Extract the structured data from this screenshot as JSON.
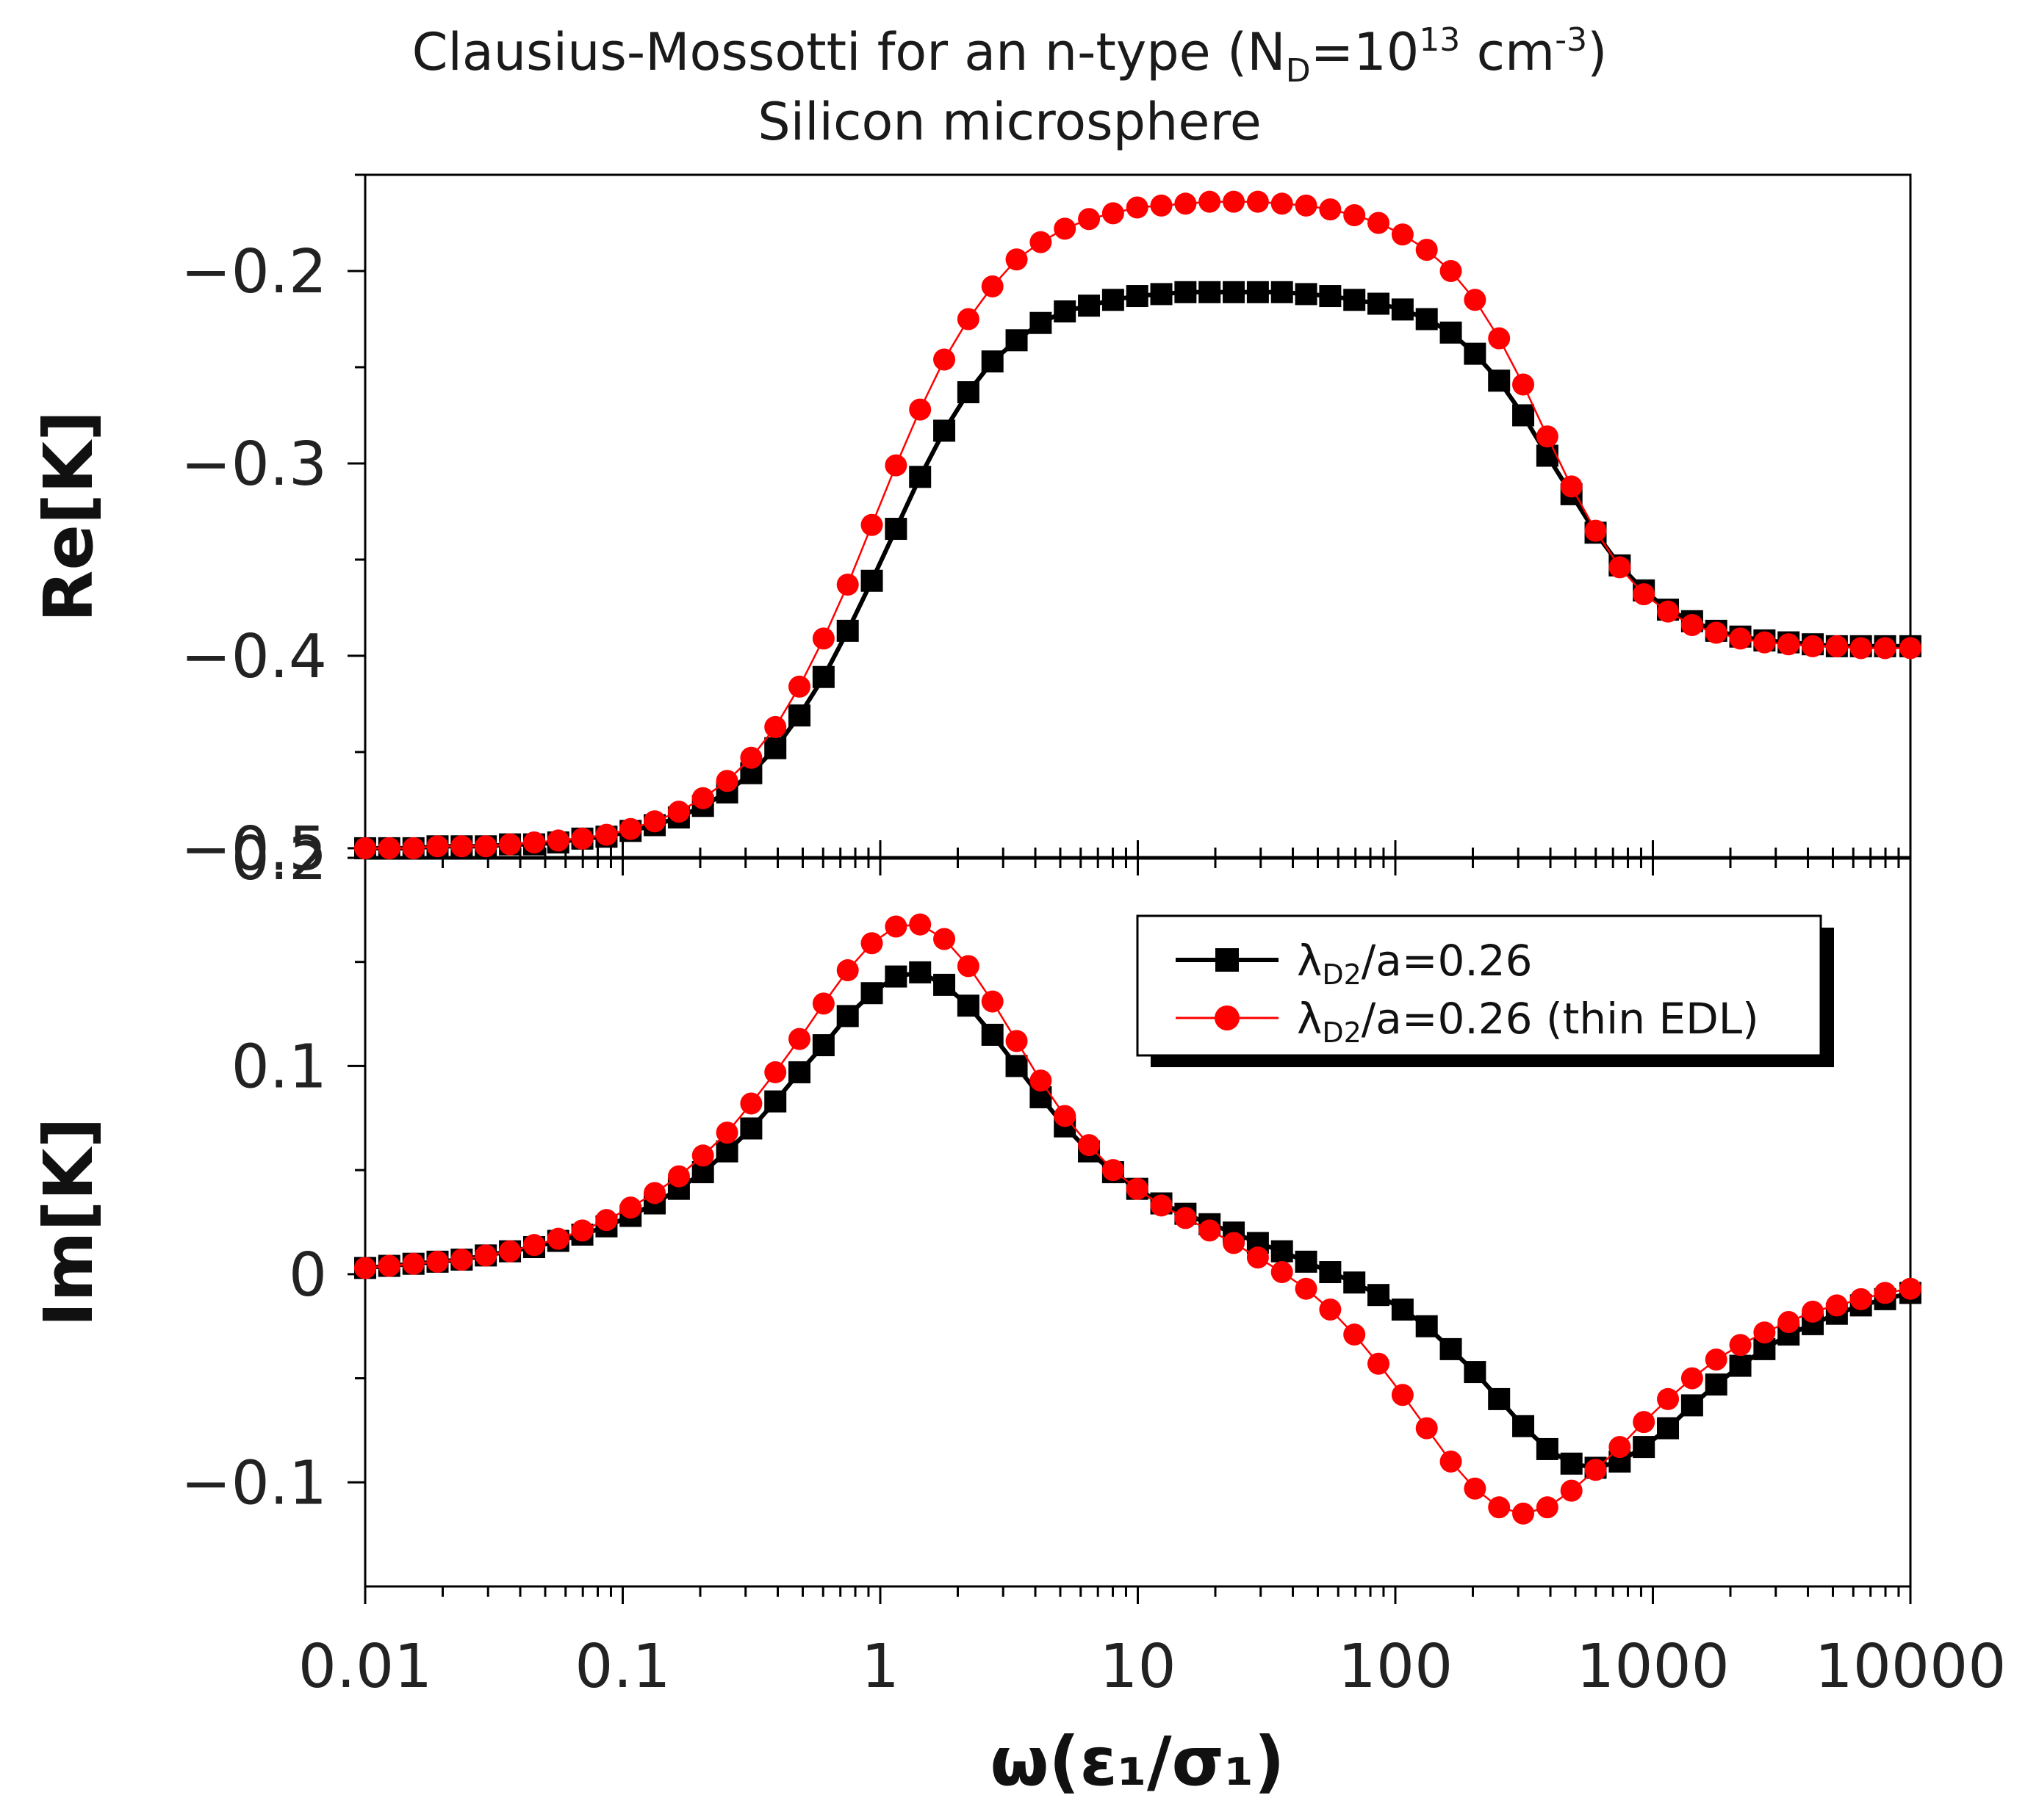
{
  "chart_data": {
    "type": "line",
    "title_line1": "Clausius-Mossotti for an n-type (N",
    "title_sub": "D",
    "title_mid": "=10",
    "title_sup": "13",
    "title_after": " cm",
    "title_sup2": "-3",
    "title_end": ")",
    "title_line2": "Silicon microsphere",
    "xlabel": "ω(ε₁/σ₁)",
    "xscale": "log",
    "xlim": [
      0.01,
      10000
    ],
    "x_ticks": [
      0.01,
      0.1,
      1,
      10,
      100,
      1000,
      10000
    ],
    "x_tick_labels": [
      "0.01",
      "0.1",
      "1",
      "10",
      "100",
      "1000",
      "10000"
    ],
    "x": [
      0.01,
      0.0124,
      0.0154,
      0.0191,
      0.0237,
      0.0294,
      0.0365,
      0.0453,
      0.0562,
      0.0697,
      0.0865,
      0.1073,
      0.1331,
      0.1652,
      0.2049,
      0.2543,
      0.3155,
      0.3914,
      0.4856,
      0.6025,
      0.7476,
      0.9275,
      1.1508,
      1.4278,
      1.7716,
      2.198,
      2.7271,
      3.3836,
      4.1981,
      5.2087,
      6.4626,
      8.0183,
      9.9485,
      12.3433,
      15.3146,
      19.0012,
      23.5752,
      29.2503,
      36.2915,
      45.0276,
      55.8667,
      69.3149,
      86.0005,
      106.7029,
      132.3888,
      164.2579,
      203.7985,
      252.8571,
      313.7254,
      389.2459,
      482.9458,
      599.2007,
      743.4407,
      922.4016,
      1144.4424,
      1419.9326,
      1761.7383,
      2185.8246,
      2712.0001,
      3364.9315,
      4174.8571,
      5179.7451,
      6426.5678,
      7973.4882,
      10000
    ],
    "panels": [
      {
        "name": "top",
        "ylabel": "Re[K]",
        "ylim": [
          -0.505,
          -0.15
        ],
        "y_ticks": [
          -0.5,
          -0.4,
          -0.3,
          -0.2
        ],
        "y_tick_labels": [
          "−0.5",
          "−0.4",
          "−0.3",
          "−0.2"
        ],
        "series": [
          {
            "name": "λD2/a=0.26",
            "color": "#000000",
            "marker": "square",
            "values": [
              -0.5,
              -0.5,
              -0.5,
              -0.499,
              -0.499,
              -0.499,
              -0.498,
              -0.498,
              -0.497,
              -0.495,
              -0.494,
              -0.491,
              -0.488,
              -0.484,
              -0.478,
              -0.471,
              -0.461,
              -0.448,
              -0.431,
              -0.411,
              -0.387,
              -0.361,
              -0.334,
              -0.307,
              -0.283,
              -0.263,
              -0.247,
              -0.236,
              -0.227,
              -0.221,
              -0.218,
              -0.215,
              -0.213,
              -0.212,
              -0.211,
              -0.211,
              -0.211,
              -0.211,
              -0.211,
              -0.212,
              -0.213,
              -0.215,
              -0.217,
              -0.22,
              -0.225,
              -0.232,
              -0.243,
              -0.257,
              -0.275,
              -0.296,
              -0.316,
              -0.336,
              -0.353,
              -0.366,
              -0.376,
              -0.382,
              -0.387,
              -0.39,
              -0.392,
              -0.393,
              -0.394,
              -0.395,
              -0.395,
              -0.395,
              -0.395
            ]
          },
          {
            "name": "λD2/a=0.26 (thin EDL)",
            "color": "#ff0000",
            "marker": "circle",
            "values": [
              -0.5,
              -0.5,
              -0.5,
              -0.499,
              -0.499,
              -0.499,
              -0.498,
              -0.497,
              -0.496,
              -0.495,
              -0.493,
              -0.49,
              -0.486,
              -0.481,
              -0.474,
              -0.465,
              -0.453,
              -0.437,
              -0.416,
              -0.391,
              -0.363,
              -0.332,
              -0.301,
              -0.272,
              -0.246,
              -0.225,
              -0.208,
              -0.194,
              -0.185,
              -0.178,
              -0.173,
              -0.17,
              -0.167,
              -0.166,
              -0.165,
              -0.164,
              -0.164,
              -0.164,
              -0.165,
              -0.166,
              -0.168,
              -0.171,
              -0.175,
              -0.181,
              -0.189,
              -0.2,
              -0.215,
              -0.235,
              -0.259,
              -0.286,
              -0.312,
              -0.335,
              -0.354,
              -0.368,
              -0.377,
              -0.384,
              -0.388,
              -0.391,
              -0.393,
              -0.394,
              -0.395,
              -0.395,
              -0.396,
              -0.396,
              -0.396
            ]
          }
        ]
      },
      {
        "name": "bottom",
        "ylabel": "Im[K]",
        "ylim": [
          -0.15,
          0.2
        ],
        "y_ticks": [
          -0.1,
          0,
          0.1,
          0.2
        ],
        "y_tick_labels": [
          "−0.1",
          "0",
          "0.1",
          "0.2"
        ],
        "series": [
          {
            "name": "λD2/a=0.26",
            "color": "#000000",
            "marker": "square",
            "values": [
              0.003,
              0.004,
              0.005,
              0.006,
              0.007,
              0.009,
              0.011,
              0.013,
              0.016,
              0.019,
              0.023,
              0.028,
              0.034,
              0.041,
              0.049,
              0.059,
              0.07,
              0.083,
              0.097,
              0.11,
              0.124,
              0.135,
              0.143,
              0.145,
              0.139,
              0.129,
              0.115,
              0.1,
              0.085,
              0.071,
              0.059,
              0.049,
              0.041,
              0.034,
              0.029,
              0.024,
              0.02,
              0.015,
              0.011,
              0.006,
              0.001,
              -0.004,
              -0.01,
              -0.017,
              -0.025,
              -0.036,
              -0.047,
              -0.06,
              -0.073,
              -0.084,
              -0.091,
              -0.093,
              -0.09,
              -0.083,
              -0.074,
              -0.063,
              -0.053,
              -0.044,
              -0.036,
              -0.029,
              -0.024,
              -0.019,
              -0.015,
              -0.012,
              -0.009
            ]
          },
          {
            "name": "λD2/a=0.26 (thin EDL)",
            "color": "#ff0000",
            "marker": "circle",
            "values": [
              0.003,
              0.004,
              0.005,
              0.006,
              0.007,
              0.009,
              0.011,
              0.014,
              0.017,
              0.021,
              0.026,
              0.032,
              0.039,
              0.047,
              0.057,
              0.068,
              0.082,
              0.097,
              0.113,
              0.13,
              0.146,
              0.159,
              0.167,
              0.168,
              0.161,
              0.148,
              0.131,
              0.112,
              0.093,
              0.076,
              0.062,
              0.05,
              0.041,
              0.033,
              0.027,
              0.021,
              0.015,
              0.008,
              0.001,
              -0.007,
              -0.017,
              -0.029,
              -0.043,
              -0.058,
              -0.074,
              -0.09,
              -0.103,
              -0.112,
              -0.115,
              -0.112,
              -0.104,
              -0.094,
              -0.083,
              -0.071,
              -0.06,
              -0.05,
              -0.041,
              -0.034,
              -0.028,
              -0.023,
              -0.018,
              -0.015,
              -0.012,
              -0.009,
              -0.007
            ]
          }
        ]
      }
    ],
    "legend": {
      "placement": "top-right of bottom panel",
      "entries": [
        {
          "prefix": "λ",
          "sub": "D2",
          "suffix": "/a=0.26",
          "color": "#000000",
          "marker": "square"
        },
        {
          "prefix": "λ",
          "sub": "D2",
          "suffix": "/a=0.26 (thin EDL)",
          "color": "#ff0000",
          "marker": "circle"
        }
      ]
    }
  }
}
